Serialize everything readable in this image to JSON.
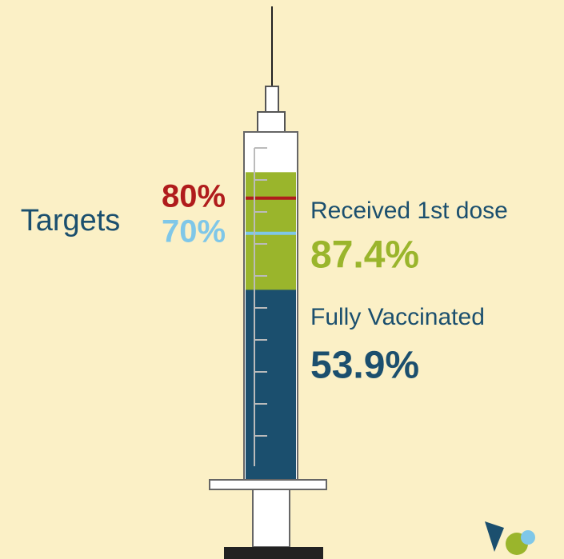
{
  "chart_data": {
    "type": "syringe",
    "ylim": [
      0,
      100
    ],
    "target_label": "Targets",
    "targets": [
      {
        "value": 80,
        "label": "80%",
        "color": "#b01c1c"
      },
      {
        "value": 70,
        "label": "70%",
        "color": "#7fc7e8"
      }
    ],
    "series": [
      {
        "name": "Received 1st dose",
        "color": "#9ab52c",
        "values": [
          87.4
        ],
        "value_labels": [
          "87.4%"
        ]
      },
      {
        "name": "Fully Vaccinated",
        "color": "#1b4f6e",
        "values": [
          53.9
        ],
        "value_labels": [
          "53.9%"
        ]
      }
    ]
  }
}
